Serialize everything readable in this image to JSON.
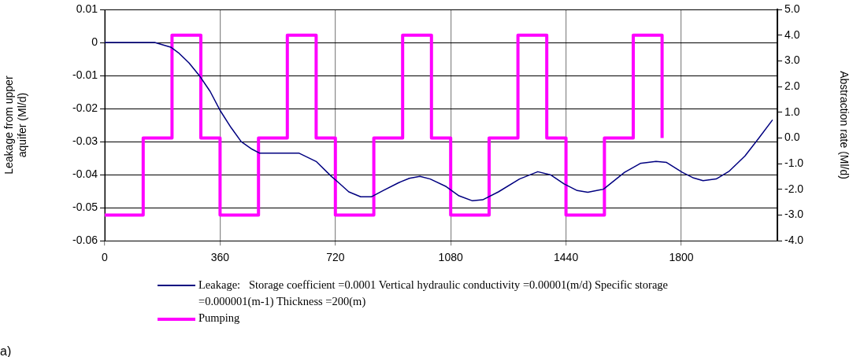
{
  "chart_data": {
    "type": "line",
    "xlabel": null,
    "ylabel": "Leakage from upper aquifer (Ml/d)",
    "y2label": "Abstraction rate (Ml/d)",
    "xlim": [
      0,
      2100
    ],
    "xticks": [
      0,
      360,
      720,
      1080,
      1440,
      1800
    ],
    "ylim": [
      -0.06,
      0.01
    ],
    "yticks": [
      -0.06,
      -0.05,
      -0.04,
      -0.03,
      -0.02,
      -0.01,
      0,
      0.01
    ],
    "y2lim": [
      -4,
      5
    ],
    "y2ticks": [
      {
        "value": -4,
        "label": "-4.0"
      },
      {
        "value": -3,
        "label": "-3.0"
      },
      {
        "value": -2,
        "label": "-2.0"
      },
      {
        "value": -1,
        "label": "-1.0"
      },
      {
        "value": 0,
        "label": "0.0"
      },
      {
        "value": 1,
        "label": "1.0"
      },
      {
        "value": 2,
        "label": "2.0"
      },
      {
        "value": 3,
        "label": "3.0"
      },
      {
        "value": 4,
        "label": "4.0"
      },
      {
        "value": 5,
        "label": "5.0"
      }
    ],
    "grid": true,
    "legend": "bottom",
    "marker": "none",
    "line_style": "solid",
    "annotations": [
      "a)"
    ],
    "series": [
      {
        "name": "Leakage:   Storage coefficient =0.0001 Vertical hydraulic conductivity =0.00001(m/d) Specific storage =0.000001(m-1) Thickness =200(m)",
        "color": "#000080",
        "type": "line",
        "x": [
          0,
          156,
          206,
          230,
          263,
          296,
          329,
          361,
          394,
          426,
          460,
          484,
          607,
          660,
          705,
          730,
          762,
          799,
          832,
          869,
          918,
          951,
          984,
          1016,
          1066,
          1106,
          1148,
          1180,
          1229,
          1295,
          1352,
          1393,
          1434,
          1475,
          1508,
          1557,
          1623,
          1672,
          1721,
          1754,
          1803,
          1836,
          1868,
          1909,
          1950,
          1999,
          2040,
          2085
        ],
        "values": [
          0,
          0,
          -0.0014,
          -0.0031,
          -0.0062,
          -0.0101,
          -0.0148,
          -0.0207,
          -0.0257,
          -0.03,
          -0.0323,
          -0.0335,
          -0.0335,
          -0.036,
          -0.0403,
          -0.0424,
          -0.0452,
          -0.0467,
          -0.0467,
          -0.0448,
          -0.0424,
          -0.0411,
          -0.0405,
          -0.0413,
          -0.0436,
          -0.0464,
          -0.0479,
          -0.0476,
          -0.0452,
          -0.0413,
          -0.0391,
          -0.0401,
          -0.0428,
          -0.0448,
          -0.0453,
          -0.0444,
          -0.0393,
          -0.0366,
          -0.036,
          -0.0363,
          -0.0393,
          -0.0409,
          -0.0418,
          -0.0413,
          -0.0389,
          -0.0343,
          -0.0292,
          -0.0234
        ]
      },
      {
        "name": "Pumping",
        "color": "#ff00ff",
        "type": "step",
        "axis": "y2",
        "x": [
          0,
          120,
          210,
          300,
          360,
          480,
          570,
          660,
          720,
          840,
          930,
          1020,
          1080,
          1200,
          1290,
          1380,
          1440,
          1560,
          1650,
          1740
        ],
        "values": [
          -3,
          0,
          4,
          0,
          -3,
          0,
          4,
          0,
          -3,
          0,
          4,
          0,
          -3,
          0,
          4,
          0,
          -3,
          0,
          4,
          0
        ]
      }
    ]
  }
}
